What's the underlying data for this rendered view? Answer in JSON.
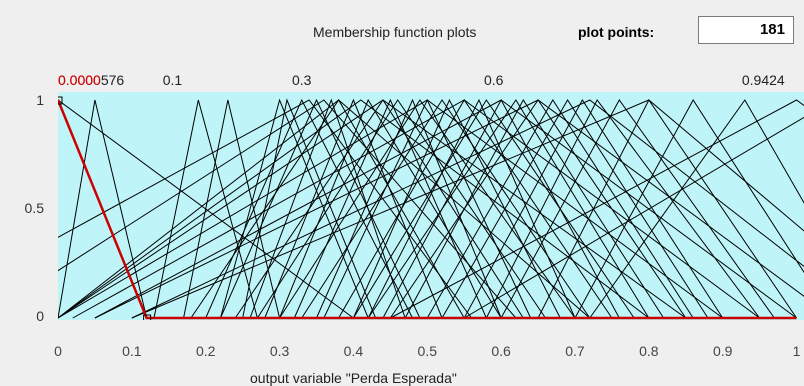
{
  "header": {
    "title": "Membership function plots",
    "plot_points_label": "plot points:",
    "plot_points_value": "181"
  },
  "axes": {
    "x_label": "output variable \"Perda Esperada\"",
    "x_ticks": [
      "0",
      "0.1",
      "0.2",
      "0.3",
      "0.4",
      "0.5",
      "0.6",
      "0.7",
      "0.8",
      "0.9",
      "1"
    ],
    "y_ticks": [
      "1",
      "0.5",
      "0"
    ]
  },
  "mf_labels": [
    {
      "text": "0.0000576",
      "x": 0.0,
      "selected": false
    },
    {
      "text": "0.0000",
      "x": 0.0,
      "selected": true
    },
    {
      "text": "0.1",
      "x": 0.155,
      "selected": false
    },
    {
      "text": "0.3",
      "x": 0.33,
      "selected": false
    },
    {
      "text": "0.6",
      "x": 0.59,
      "selected": false
    },
    {
      "text": "0.9424",
      "x": 0.955,
      "selected": false
    }
  ],
  "colors": {
    "plot_bg": "#bff5f9",
    "line": "#000000",
    "selected_line": "#cc0000"
  },
  "chart_data": {
    "type": "line",
    "xlim": [
      0,
      1
    ],
    "ylim": [
      0,
      1
    ],
    "selected_mf": [
      [
        0,
        1
      ],
      [
        0.12,
        0
      ],
      [
        1,
        0
      ]
    ],
    "mfs": [
      [
        0.0,
        0.05,
        0.12
      ],
      [
        0.13,
        0.19,
        0.27
      ],
      [
        0.17,
        0.23,
        0.3
      ],
      [
        0.22,
        0.3,
        0.42
      ],
      [
        0.25,
        0.31,
        0.43
      ],
      [
        0.2,
        0.33,
        0.48
      ],
      [
        0.22,
        0.35,
        0.49
      ],
      [
        0.26,
        0.37,
        0.47
      ],
      [
        0.18,
        0.38,
        0.55
      ],
      [
        0.28,
        0.4,
        0.52
      ],
      [
        0.3,
        0.42,
        0.6
      ],
      [
        0.24,
        0.44,
        0.63
      ],
      [
        0.32,
        0.45,
        0.58
      ],
      [
        0.27,
        0.46,
        0.66
      ],
      [
        0.35,
        0.48,
        0.6
      ],
      [
        0.3,
        0.49,
        0.7
      ],
      [
        0.36,
        0.5,
        0.64
      ],
      [
        0.33,
        0.52,
        0.72
      ],
      [
        0.4,
        0.53,
        0.68
      ],
      [
        0.38,
        0.55,
        0.75
      ],
      [
        0.42,
        0.57,
        0.7
      ],
      [
        0.4,
        0.58,
        0.78
      ],
      [
        0.44,
        0.6,
        0.76
      ],
      [
        0.42,
        0.62,
        0.8
      ],
      [
        0.47,
        0.63,
        0.82
      ],
      [
        0.45,
        0.65,
        0.85
      ],
      [
        0.5,
        0.67,
        0.86
      ],
      [
        0.52,
        0.69,
        0.88
      ],
      [
        0.55,
        0.71,
        0.9
      ],
      [
        0.58,
        0.73,
        0.95
      ],
      [
        0.6,
        0.76,
        0.97
      ],
      [
        0.65,
        0.8,
        1.0
      ],
      [
        0.7,
        0.86,
        1.05
      ],
      [
        0.72,
        0.93,
        1.1
      ],
      [
        0.0,
        0.38,
        0.72
      ],
      [
        0.0,
        0.41,
        0.8
      ],
      [
        0.0,
        0.44,
        0.85
      ],
      [
        0.0,
        0.5,
        0.9
      ],
      [
        0.02,
        0.55,
        0.95
      ],
      [
        0.05,
        0.6,
        1.0
      ],
      [
        0.05,
        0.65,
        1.05
      ],
      [
        0.1,
        0.72,
        1.1
      ],
      [
        0.1,
        0.8,
        1.15
      ],
      [
        -0.2,
        0.34,
        0.56
      ],
      [
        -0.1,
        0.36,
        0.62
      ],
      [
        -0.3,
        0.0,
        0.4
      ],
      [
        0.45,
        1.0,
        1.4
      ],
      [
        0.55,
        1.05,
        1.5
      ]
    ]
  }
}
